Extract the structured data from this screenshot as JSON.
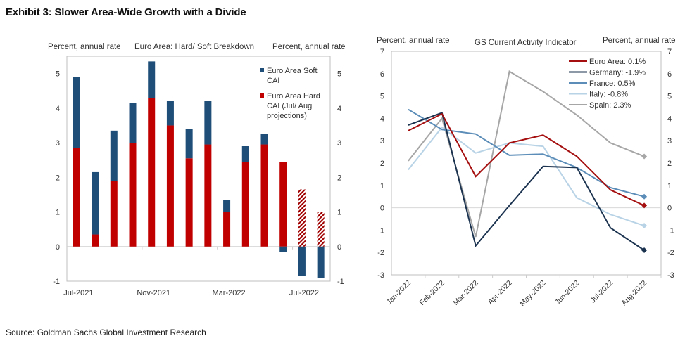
{
  "title": "Exhibit 3: Slower Area-Wide Growth with a Divide",
  "source": "Source: Goldman Sachs Global Investment Research",
  "chart_data": [
    {
      "type": "bar",
      "stacked": true,
      "title": "Euro Area: Hard/ Soft Breakdown",
      "ylabel_left": "Percent, annual rate",
      "ylabel_right": "Percent, annual rate",
      "ylim": [
        -1,
        5.5
      ],
      "yticks": [
        "-1",
        "0",
        "1",
        "2",
        "3",
        "4",
        "5"
      ],
      "categories": [
        "Jul-2021",
        "Aug-2021",
        "Sep-2021",
        "Oct-2021",
        "Nov-2021",
        "Dec-2021",
        "Jan-2022",
        "Feb-2022",
        "Mar-2022",
        "Apr-2022",
        "May-2022",
        "Jun-2022",
        "Jul-2022",
        "Aug-2022"
      ],
      "xtick_labels": [
        "Jul-2021",
        "Nov-2021",
        "Mar-2022",
        "Jul-2022"
      ],
      "projected_categories": [
        "Jul-2022",
        "Aug-2022"
      ],
      "legend_position": "top-right",
      "series": [
        {
          "name": "Euro Area Soft CAI",
          "legend_lines": [
            "Euro Area Soft",
            "CAI"
          ],
          "color": "#1f4e79",
          "values": [
            2.05,
            1.8,
            1.45,
            1.15,
            1.05,
            0.7,
            0.85,
            1.25,
            0.35,
            0.45,
            0.3,
            -0.15,
            -0.85,
            -0.9
          ]
        },
        {
          "name": "Euro Area Hard CAI (Jul/ Aug projections)",
          "legend_lines": [
            "Euro Area Hard",
            "CAI (Jul/ Aug",
            "projections)"
          ],
          "color": "#c00000",
          "values": [
            2.85,
            0.35,
            1.9,
            3.0,
            4.3,
            3.5,
            2.55,
            2.95,
            1.0,
            2.45,
            2.95,
            2.45,
            1.65,
            1.0
          ]
        }
      ]
    },
    {
      "type": "line",
      "title": "GS Current Activity  Indicator",
      "ylabel_left": "Percent, annual rate",
      "ylabel_right": "Percent, annual rate",
      "ylim": [
        -3,
        7
      ],
      "yticks": [
        "-3",
        "-2",
        "-1",
        "0",
        "1",
        "2",
        "3",
        "4",
        "5",
        "6",
        "7"
      ],
      "categories": [
        "Jan-2022",
        "Feb-2022",
        "Mar-2022",
        "Apr-2022",
        "May-2022",
        "Jun-2022",
        "Jul-2022",
        "Aug-2022"
      ],
      "legend_position": "top-right",
      "series": [
        {
          "name": "Euro Area: 0.1%",
          "color": "#a50f0f",
          "values": [
            3.45,
            4.2,
            1.4,
            2.9,
            3.25,
            2.3,
            0.8,
            0.1
          ]
        },
        {
          "name": "Germany: -1.9%",
          "color": "#1c3350",
          "values": [
            3.7,
            4.25,
            -1.7,
            0.1,
            1.85,
            1.8,
            -0.9,
            -1.9
          ]
        },
        {
          "name": "France: 0.5%",
          "color": "#5b8db8",
          "values": [
            4.4,
            3.5,
            3.3,
            2.35,
            2.4,
            1.8,
            0.9,
            0.5
          ]
        },
        {
          "name": "Italy: -0.8%",
          "color": "#b9d3e6",
          "values": [
            1.7,
            3.6,
            2.45,
            2.9,
            2.75,
            0.45,
            -0.3,
            -0.8
          ]
        },
        {
          "name": "Spain: 2.3%",
          "color": "#a6a6a6",
          "values": [
            2.1,
            4.0,
            -1.3,
            6.1,
            5.2,
            4.15,
            2.9,
            2.3
          ]
        }
      ]
    }
  ]
}
